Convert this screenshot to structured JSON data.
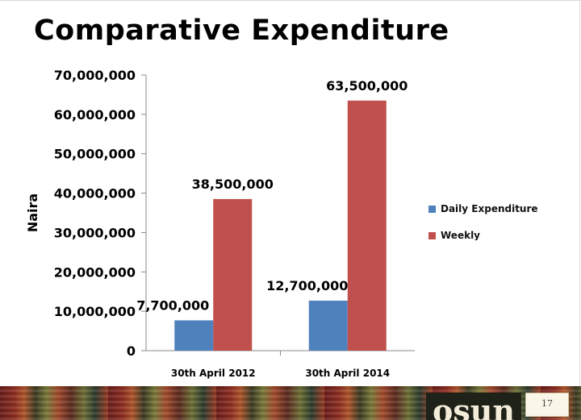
{
  "slide": {
    "title": "Comparative Expenditure",
    "page_number": "17",
    "logo_text": "osun"
  },
  "colors": {
    "daily": "#4f81bd",
    "weekly": "#c0504d",
    "axis": "#888888"
  },
  "chart_data": {
    "type": "bar",
    "title": "",
    "xlabel": "",
    "ylabel": "Naira",
    "categories": [
      "30th April 2012",
      "30th April 2014"
    ],
    "series": [
      {
        "name": "Daily Expenditure",
        "values": [
          7700000,
          12700000
        ],
        "labels": [
          "7,700,000",
          "12,700,000"
        ]
      },
      {
        "name": "Weekly",
        "values": [
          38500000,
          63500000
        ],
        "labels": [
          "38,500,000",
          "63,500,000"
        ]
      }
    ],
    "ylim": [
      0,
      70000000
    ],
    "yticks": [
      0,
      10000000,
      20000000,
      30000000,
      40000000,
      50000000,
      60000000,
      70000000
    ],
    "ytick_labels": [
      "0",
      "10,000,000",
      "20,000,000",
      "30,000,000",
      "40,000,000",
      "50,000,000",
      "60,000,000",
      "70,000,000"
    ],
    "grid": false,
    "legend": "right"
  }
}
